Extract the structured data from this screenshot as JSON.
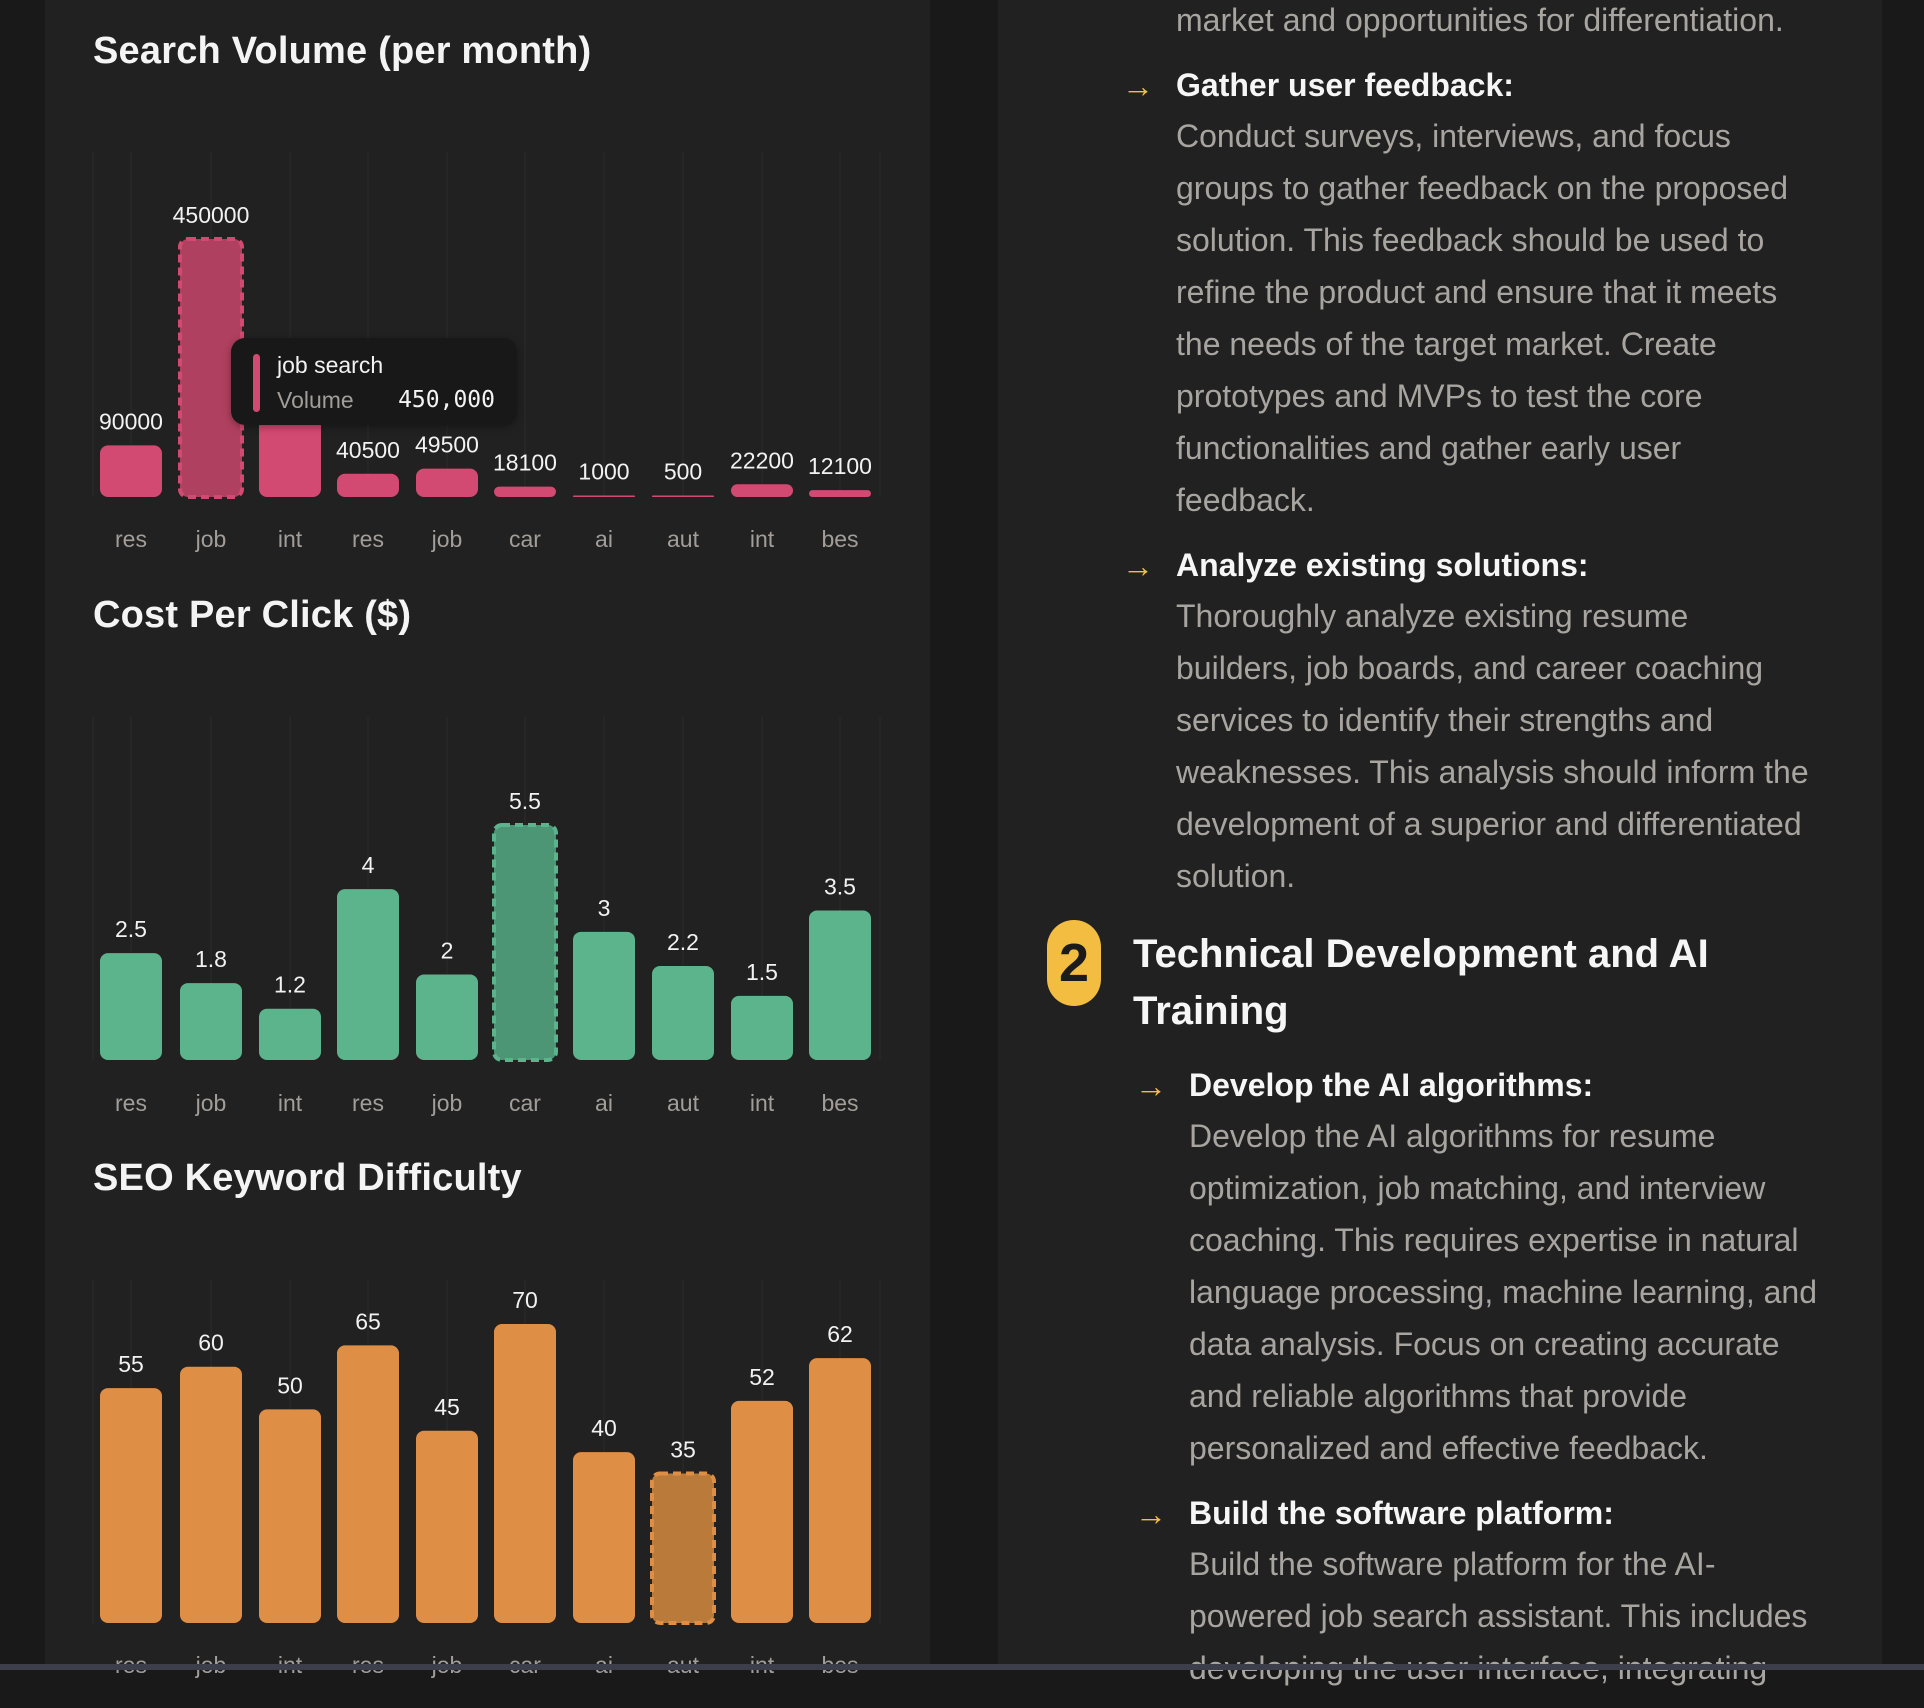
{
  "colors": {
    "volume_bar": "#d24a72",
    "volume_bar_active": "#b0405f",
    "cpc_bar": "#5bb48c",
    "cpc_bar_active": "#4c9675",
    "kd_bar": "#df8e46",
    "kd_bar_active": "#b97a3a",
    "accent": "#f2bd40"
  },
  "chart_data": [
    {
      "type": "bar",
      "title": "Search Volume (per month)",
      "categories": [
        "res",
        "job",
        "int",
        "res",
        "job",
        "car",
        "ai",
        "aut",
        "int",
        "bes"
      ],
      "values": [
        90000,
        450000,
        200000,
        40500,
        49500,
        18100,
        1000,
        500,
        22200,
        12100
      ],
      "value_labels": [
        "90000",
        "450000",
        "",
        "40500",
        "49500",
        "18100",
        "1000",
        "500",
        "22200",
        "12100"
      ],
      "note": "third bar's label hidden by tooltip; value estimated",
      "highlighted_index": 1,
      "ylim": [
        0,
        450000
      ],
      "grid": "vertical",
      "tooltip": {
        "name": "job search",
        "key": "Volume",
        "value": "450,000"
      }
    },
    {
      "type": "bar",
      "title": "Cost Per Click ($)",
      "categories": [
        "res",
        "job",
        "int",
        "res",
        "job",
        "car",
        "ai",
        "aut",
        "int",
        "bes"
      ],
      "values": [
        2.5,
        1.8,
        1.2,
        4,
        2,
        5.5,
        3,
        2.2,
        1.5,
        3.5
      ],
      "value_labels": [
        "2.5",
        "1.8",
        "1.2",
        "4",
        "2",
        "5.5",
        "3",
        "2.2",
        "1.5",
        "3.5"
      ],
      "highlighted_index": 5,
      "ylim": [
        0,
        5.5
      ],
      "grid": "vertical"
    },
    {
      "type": "bar",
      "title": "SEO Keyword Difficulty",
      "categories": [
        "res",
        "job",
        "int",
        "res",
        "job",
        "car",
        "ai",
        "aut",
        "int",
        "bes"
      ],
      "values": [
        55,
        60,
        50,
        65,
        45,
        70,
        40,
        35,
        52,
        62
      ],
      "value_labels": [
        "55",
        "60",
        "50",
        "65",
        "45",
        "70",
        "40",
        "35",
        "52",
        "62"
      ],
      "highlighted_index": 7,
      "ylim": [
        0,
        70
      ],
      "grid": "vertical"
    }
  ],
  "doc": {
    "top_fragment": "market and opportunities for differentiation.",
    "items_a": [
      {
        "title": "Gather user feedback:",
        "lines": [
          "Conduct surveys, interviews, and focus",
          "groups to gather feedback on the proposed",
          "solution. This feedback should be used to",
          "refine the product and ensure that it meets",
          "the needs of the target market. Create",
          "prototypes and MVPs to test the core",
          "functionalities and gather early user",
          "feedback."
        ]
      },
      {
        "title": "Analyze existing solutions:",
        "lines": [
          "Thoroughly analyze existing resume",
          "builders, job boards, and career coaching",
          "services to identify their strengths and",
          "weaknesses. This analysis should inform the",
          "development of a superior and differentiated",
          "solution."
        ]
      }
    ],
    "section": {
      "number": "2",
      "title": "Technical Development and AI Training"
    },
    "items_b": [
      {
        "title": "Develop the AI algorithms:",
        "lines": [
          "Develop the AI algorithms for resume",
          "optimization, job matching, and interview",
          "coaching. This requires expertise in natural",
          "language processing, machine learning, and",
          "data analysis. Focus on creating accurate",
          "and reliable algorithms that provide",
          "personalized and effective feedback."
        ]
      },
      {
        "title": "Build the software platform:",
        "lines": [
          "Build the software platform for the AI-",
          "powered job search assistant. This includes",
          "developing the user interface, integrating"
        ]
      }
    ],
    "arrow_icon": "→"
  }
}
